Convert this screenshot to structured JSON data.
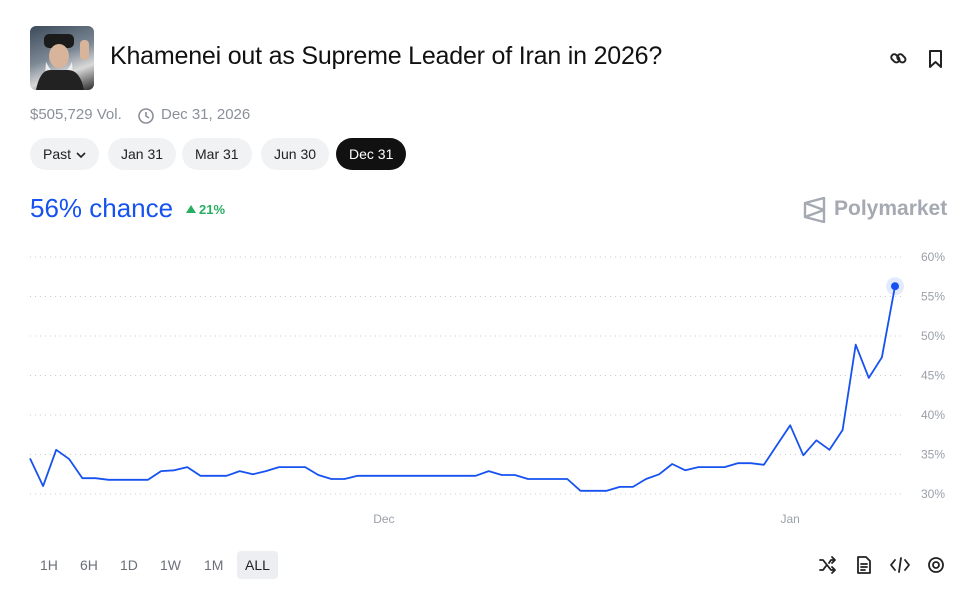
{
  "header": {
    "title": "Khamenei out as Supreme Leader of Iran in 2026?",
    "volume": "$505,729 Vol.",
    "end_date": "Dec 31, 2026"
  },
  "date_tabs": [
    "Past",
    "Jan 31",
    "Mar 31",
    "Jun 30",
    "Dec 31"
  ],
  "chance": "56% chance",
  "change": "21%",
  "brand": "Polymarket",
  "chart_data": {
    "type": "line",
    "categories": [
      null,
      null,
      null,
      null,
      null,
      null,
      null,
      null,
      null,
      null,
      null,
      null,
      null,
      null,
      null,
      null,
      null,
      null,
      null,
      null,
      null,
      null,
      null,
      null,
      null,
      null,
      null,
      "Dec",
      null,
      null,
      null,
      null,
      null,
      null,
      null,
      null,
      null,
      null,
      null,
      null,
      null,
      null,
      null,
      null,
      null,
      null,
      null,
      null,
      null,
      null,
      null,
      null,
      null,
      null,
      null,
      null,
      null,
      null,
      "Jan",
      null,
      null,
      null,
      null,
      null,
      null,
      null,
      null
    ],
    "values": [
      34.5,
      31,
      35.6,
      34.4,
      32,
      32,
      31.8,
      31.8,
      31.8,
      31.8,
      32.9,
      33,
      33.4,
      32.3,
      32.3,
      32.3,
      32.9,
      32.5,
      32.9,
      33.4,
      33.4,
      33.4,
      32.4,
      31.9,
      31.9,
      32.3,
      32.3,
      32.3,
      32.3,
      32.3,
      32.3,
      32.3,
      32.3,
      32.3,
      32.3,
      32.9,
      32.4,
      32.4,
      31.9,
      31.9,
      31.9,
      31.9,
      30.4,
      30.4,
      30.4,
      30.9,
      30.9,
      31.9,
      32.5,
      33.8,
      33,
      33.4,
      33.4,
      33.4,
      33.9,
      33.9,
      33.7,
      36.2,
      38.7,
      34.9,
      36.8,
      35.6,
      38.1,
      48.9,
      44.7,
      47.3,
      56.3
    ],
    "color": "#1652f0",
    "ylim": [
      30,
      60
    ],
    "yticks": [
      {
        "value": 30,
        "label": "30%"
      },
      {
        "value": 35,
        "label": "35%"
      },
      {
        "value": 40,
        "label": "40%"
      },
      {
        "value": 45,
        "label": "45%"
      },
      {
        "value": 50,
        "label": "50%"
      },
      {
        "value": 55,
        "label": "55%"
      },
      {
        "value": 60,
        "label": "60%"
      }
    ],
    "grid": true
  },
  "time_ranges": [
    "1H",
    "6H",
    "1D",
    "1W",
    "1M",
    "ALL"
  ]
}
